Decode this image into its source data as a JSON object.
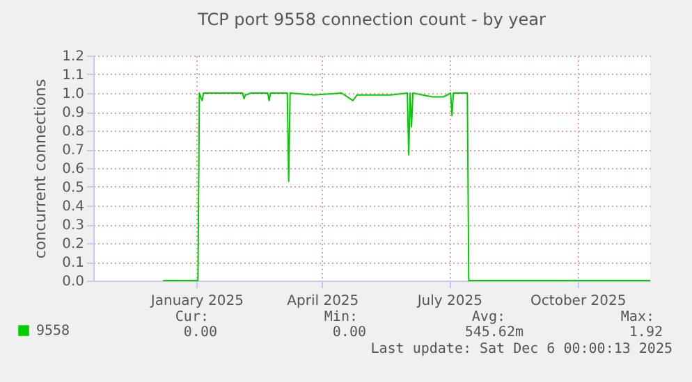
{
  "chart_data": {
    "type": "line",
    "title": "TCP port 9558 connection count - by year",
    "ylabel": "concurrent connections",
    "x": [
      "2024-12-22",
      "2025-01-16",
      "2025-01-17",
      "2025-01-19",
      "2025-01-20",
      "2025-02-17",
      "2025-02-18",
      "2025-02-19",
      "2025-02-23",
      "2025-03-07",
      "2025-03-08",
      "2025-03-09",
      "2025-03-21",
      "2025-03-22",
      "2025-03-23",
      "2025-04-09",
      "2025-04-29",
      "2025-05-07",
      "2025-05-10",
      "2025-06-03",
      "2025-06-15",
      "2025-06-16",
      "2025-06-17",
      "2025-06-18",
      "2025-06-19",
      "2025-07-03",
      "2025-07-11",
      "2025-07-16",
      "2025-07-17",
      "2025-07-18",
      "2025-07-28",
      "2025-07-29",
      "2025-12-06"
    ],
    "series": [
      {
        "name": "9558",
        "color": "#00cc00",
        "values": [
          0,
          0,
          1.0,
          0.96,
          1.0,
          1.0,
          0.97,
          0.99,
          1.0,
          1.0,
          0.96,
          1.0,
          1.0,
          0.53,
          1.0,
          0.99,
          1.0,
          0.96,
          0.99,
          0.99,
          1.0,
          0.67,
          1.0,
          0.82,
          1.0,
          0.98,
          0.98,
          1.0,
          0.88,
          1.0,
          1.0,
          0,
          0
        ]
      }
    ],
    "xlim": [
      "2024-11-02",
      "2025-12-06"
    ],
    "xticks": [
      {
        "value": "2025-01-15",
        "label": "January 2025"
      },
      {
        "value": "2025-04-15",
        "label": "April 2025"
      },
      {
        "value": "2025-07-15",
        "label": "July 2025"
      },
      {
        "value": "2025-10-15",
        "label": "October 2025"
      }
    ],
    "ylim": [
      0,
      1.2
    ],
    "yticks": [
      {
        "value": 0,
        "label": "0.0"
      },
      {
        "value": 0.1,
        "label": "0.1"
      },
      {
        "value": 0.2,
        "label": "0.2"
      },
      {
        "value": 0.3,
        "label": "0.3"
      },
      {
        "value": 0.4,
        "label": "0.4"
      },
      {
        "value": 0.5,
        "label": "0.5"
      },
      {
        "value": 0.6,
        "label": "0.6"
      },
      {
        "value": 0.7,
        "label": "0.7"
      },
      {
        "value": 0.8,
        "label": "0.8"
      },
      {
        "value": 0.9,
        "label": "0.9"
      },
      {
        "value": 1.0,
        "label": "1.0"
      },
      {
        "value": 1.1,
        "label": "1.1"
      },
      {
        "value": 1.2,
        "label": "1.2"
      }
    ],
    "grid": true,
    "legend": "bottom",
    "marker": "none",
    "line_style": "solid",
    "annotations": [
      "Cur:",
      "Min:",
      "Avg:",
      "Max:",
      "0.00",
      "0.00",
      "545.62m",
      "1.92",
      "Last update: Sat Dec  6 00:00:13 2025"
    ]
  }
}
